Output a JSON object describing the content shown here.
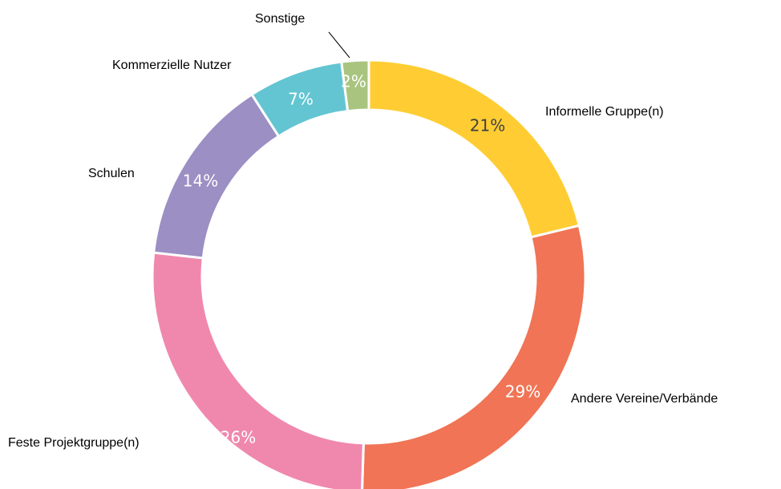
{
  "chart_data": {
    "type": "donut",
    "categories": [
      "Informelle Gruppe(n)",
      "Andere Vereine/Verbände",
      "Feste Projektgruppe(n)",
      "Schulen",
      "Kommerzielle Nutzer",
      "Sonstige"
    ],
    "values": [
      21,
      29,
      26,
      14,
      7,
      2
    ],
    "value_labels": [
      "21%",
      "29%",
      "26%",
      "14%",
      "7%",
      "2%"
    ],
    "colors": [
      "#FFCD33",
      "#F07455",
      "#F088AE",
      "#9B8FC4",
      "#63C5D2",
      "#A9C47F"
    ]
  }
}
